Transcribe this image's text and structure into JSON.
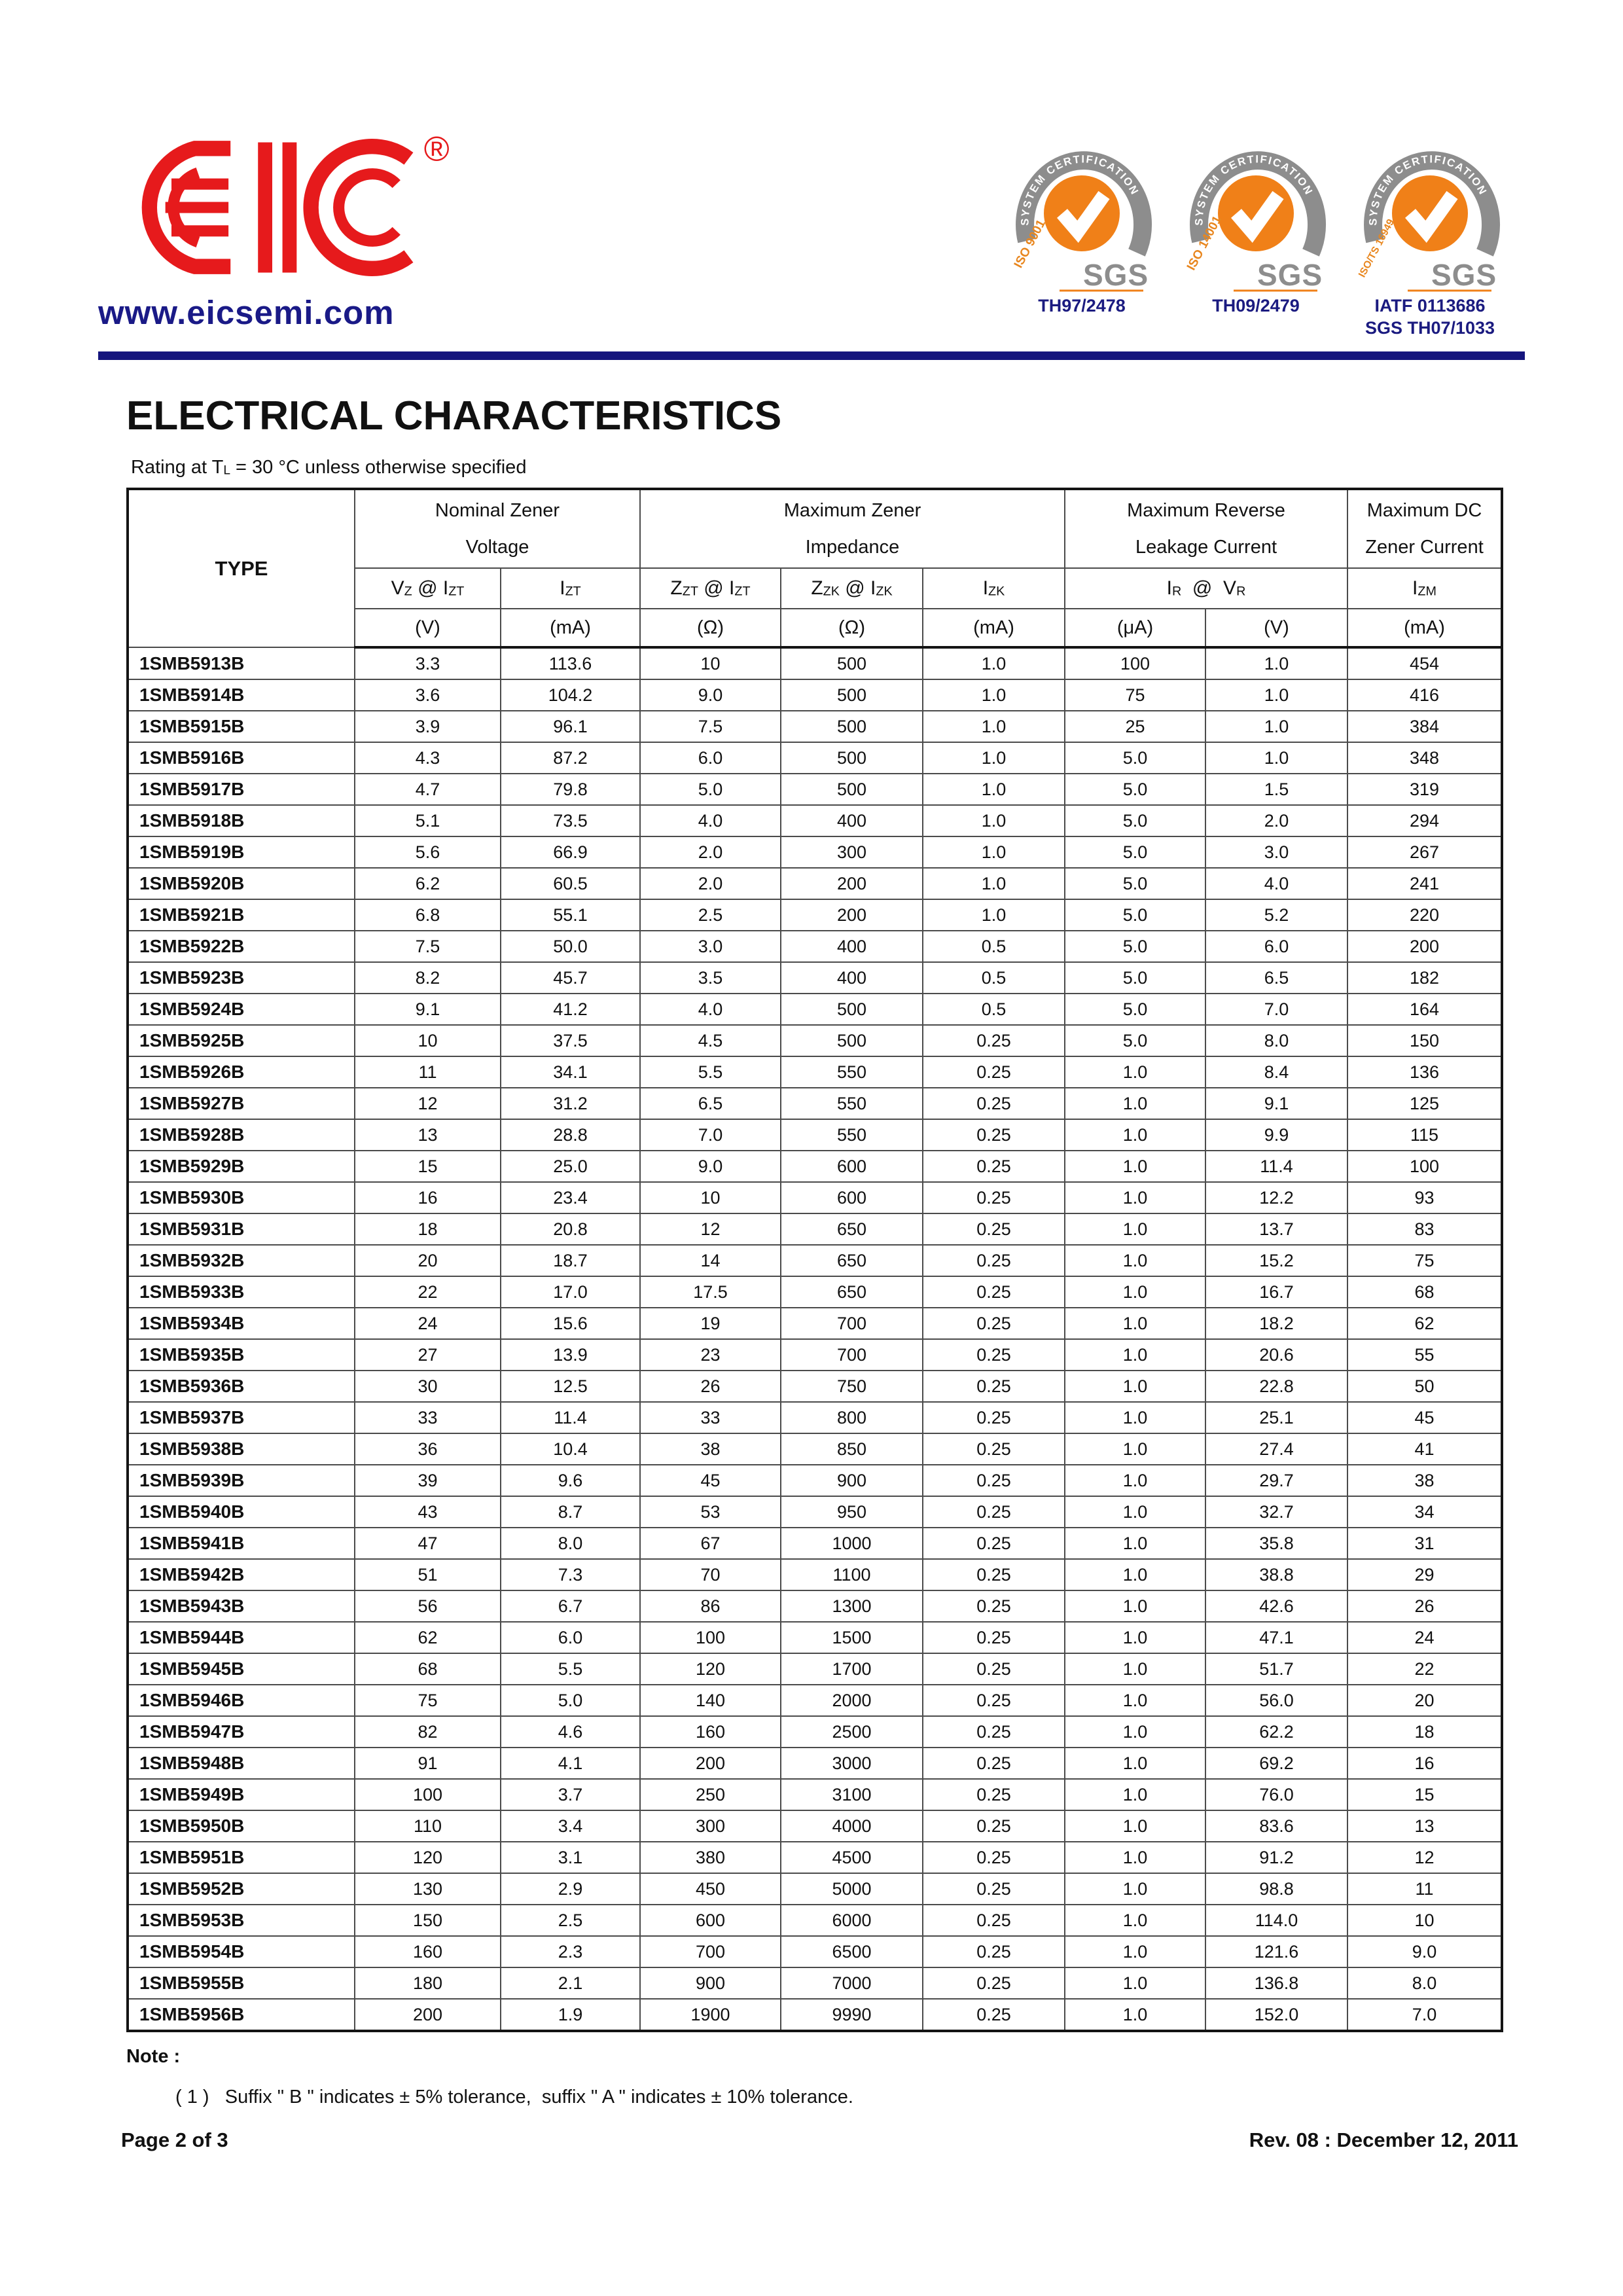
{
  "header": {
    "website": "www.eicsemi.com",
    "logo_reg": "®",
    "badges": [
      {
        "arc_text": "SYSTEM CERTIFICATION",
        "iso": "ISO 9001",
        "sgs": "SGS",
        "label_lines": [
          "TH97/2478"
        ]
      },
      {
        "arc_text": "SYSTEM CERTIFICATION",
        "iso": "ISO 14001",
        "sgs": "SGS",
        "label_lines": [
          "TH09/2479"
        ]
      },
      {
        "arc_text": "SYSTEM CERTIFICATION",
        "iso": "ISO/TS 16949",
        "sgs": "SGS",
        "label_lines": [
          "IATF 0113686",
          "SGS TH07/1033"
        ]
      }
    ]
  },
  "title": "ELECTRICAL CHARACTERISTICS",
  "subtitle_rich": "Rating at T~L~ = 30 °C unless otherwise specified",
  "table": {
    "type_header": "TYPE",
    "groups": [
      {
        "line1": "Nominal Zener",
        "line2": "Voltage"
      },
      {
        "line1": "Maximum Zener",
        "line2": "Impedance"
      },
      {
        "line1": "Maximum Reverse",
        "line2": "Leakage Current"
      },
      {
        "line1": "Maximum DC",
        "line2": "Zener Current"
      }
    ],
    "symbols": [
      {
        "rich": "V~Z~ @ I~ZT~"
      },
      {
        "rich": "I~ZT~"
      },
      {
        "rich": "Z~ZT~ @ I~ZT~"
      },
      {
        "rich": "Z~ZK~ @ I~ZK~"
      },
      {
        "rich": "I~ZK~"
      },
      {
        "rich": "I~R~  @  V~R~"
      },
      {
        "rich": "I~ZM~"
      }
    ],
    "units": [
      "(V)",
      "(mA)",
      "(Ω)",
      "(Ω)",
      "(mA)",
      "(μA)",
      "(V)",
      "(mA)"
    ],
    "rows": [
      [
        "1SMB5913B",
        "3.3",
        "113.6",
        "10",
        "500",
        "1.0",
        "100",
        "1.0",
        "454"
      ],
      [
        "1SMB5914B",
        "3.6",
        "104.2",
        "9.0",
        "500",
        "1.0",
        "75",
        "1.0",
        "416"
      ],
      [
        "1SMB5915B",
        "3.9",
        "96.1",
        "7.5",
        "500",
        "1.0",
        "25",
        "1.0",
        "384"
      ],
      [
        "1SMB5916B",
        "4.3",
        "87.2",
        "6.0",
        "500",
        "1.0",
        "5.0",
        "1.0",
        "348"
      ],
      [
        "1SMB5917B",
        "4.7",
        "79.8",
        "5.0",
        "500",
        "1.0",
        "5.0",
        "1.5",
        "319"
      ],
      [
        "1SMB5918B",
        "5.1",
        "73.5",
        "4.0",
        "400",
        "1.0",
        "5.0",
        "2.0",
        "294"
      ],
      [
        "1SMB5919B",
        "5.6",
        "66.9",
        "2.0",
        "300",
        "1.0",
        "5.0",
        "3.0",
        "267"
      ],
      [
        "1SMB5920B",
        "6.2",
        "60.5",
        "2.0",
        "200",
        "1.0",
        "5.0",
        "4.0",
        "241"
      ],
      [
        "1SMB5921B",
        "6.8",
        "55.1",
        "2.5",
        "200",
        "1.0",
        "5.0",
        "5.2",
        "220"
      ],
      [
        "1SMB5922B",
        "7.5",
        "50.0",
        "3.0",
        "400",
        "0.5",
        "5.0",
        "6.0",
        "200"
      ],
      [
        "1SMB5923B",
        "8.2",
        "45.7",
        "3.5",
        "400",
        "0.5",
        "5.0",
        "6.5",
        "182"
      ],
      [
        "1SMB5924B",
        "9.1",
        "41.2",
        "4.0",
        "500",
        "0.5",
        "5.0",
        "7.0",
        "164"
      ],
      [
        "1SMB5925B",
        "10",
        "37.5",
        "4.5",
        "500",
        "0.25",
        "5.0",
        "8.0",
        "150"
      ],
      [
        "1SMB5926B",
        "11",
        "34.1",
        "5.5",
        "550",
        "0.25",
        "1.0",
        "8.4",
        "136"
      ],
      [
        "1SMB5927B",
        "12",
        "31.2",
        "6.5",
        "550",
        "0.25",
        "1.0",
        "9.1",
        "125"
      ],
      [
        "1SMB5928B",
        "13",
        "28.8",
        "7.0",
        "550",
        "0.25",
        "1.0",
        "9.9",
        "115"
      ],
      [
        "1SMB5929B",
        "15",
        "25.0",
        "9.0",
        "600",
        "0.25",
        "1.0",
        "11.4",
        "100"
      ],
      [
        "1SMB5930B",
        "16",
        "23.4",
        "10",
        "600",
        "0.25",
        "1.0",
        "12.2",
        "93"
      ],
      [
        "1SMB5931B",
        "18",
        "20.8",
        "12",
        "650",
        "0.25",
        "1.0",
        "13.7",
        "83"
      ],
      [
        "1SMB5932B",
        "20",
        "18.7",
        "14",
        "650",
        "0.25",
        "1.0",
        "15.2",
        "75"
      ],
      [
        "1SMB5933B",
        "22",
        "17.0",
        "17.5",
        "650",
        "0.25",
        "1.0",
        "16.7",
        "68"
      ],
      [
        "1SMB5934B",
        "24",
        "15.6",
        "19",
        "700",
        "0.25",
        "1.0",
        "18.2",
        "62"
      ],
      [
        "1SMB5935B",
        "27",
        "13.9",
        "23",
        "700",
        "0.25",
        "1.0",
        "20.6",
        "55"
      ],
      [
        "1SMB5936B",
        "30",
        "12.5",
        "26",
        "750",
        "0.25",
        "1.0",
        "22.8",
        "50"
      ],
      [
        "1SMB5937B",
        "33",
        "11.4",
        "33",
        "800",
        "0.25",
        "1.0",
        "25.1",
        "45"
      ],
      [
        "1SMB5938B",
        "36",
        "10.4",
        "38",
        "850",
        "0.25",
        "1.0",
        "27.4",
        "41"
      ],
      [
        "1SMB5939B",
        "39",
        "9.6",
        "45",
        "900",
        "0.25",
        "1.0",
        "29.7",
        "38"
      ],
      [
        "1SMB5940B",
        "43",
        "8.7",
        "53",
        "950",
        "0.25",
        "1.0",
        "32.7",
        "34"
      ],
      [
        "1SMB5941B",
        "47",
        "8.0",
        "67",
        "1000",
        "0.25",
        "1.0",
        "35.8",
        "31"
      ],
      [
        "1SMB5942B",
        "51",
        "7.3",
        "70",
        "1100",
        "0.25",
        "1.0",
        "38.8",
        "29"
      ],
      [
        "1SMB5943B",
        "56",
        "6.7",
        "86",
        "1300",
        "0.25",
        "1.0",
        "42.6",
        "26"
      ],
      [
        "1SMB5944B",
        "62",
        "6.0",
        "100",
        "1500",
        "0.25",
        "1.0",
        "47.1",
        "24"
      ],
      [
        "1SMB5945B",
        "68",
        "5.5",
        "120",
        "1700",
        "0.25",
        "1.0",
        "51.7",
        "22"
      ],
      [
        "1SMB5946B",
        "75",
        "5.0",
        "140",
        "2000",
        "0.25",
        "1.0",
        "56.0",
        "20"
      ],
      [
        "1SMB5947B",
        "82",
        "4.6",
        "160",
        "2500",
        "0.25",
        "1.0",
        "62.2",
        "18"
      ],
      [
        "1SMB5948B",
        "91",
        "4.1",
        "200",
        "3000",
        "0.25",
        "1.0",
        "69.2",
        "16"
      ],
      [
        "1SMB5949B",
        "100",
        "3.7",
        "250",
        "3100",
        "0.25",
        "1.0",
        "76.0",
        "15"
      ],
      [
        "1SMB5950B",
        "110",
        "3.4",
        "300",
        "4000",
        "0.25",
        "1.0",
        "83.6",
        "13"
      ],
      [
        "1SMB5951B",
        "120",
        "3.1",
        "380",
        "4500",
        "0.25",
        "1.0",
        "91.2",
        "12"
      ],
      [
        "1SMB5952B",
        "130",
        "2.9",
        "450",
        "5000",
        "0.25",
        "1.0",
        "98.8",
        "11"
      ],
      [
        "1SMB5953B",
        "150",
        "2.5",
        "600",
        "6000",
        "0.25",
        "1.0",
        "114.0",
        "10"
      ],
      [
        "1SMB5954B",
        "160",
        "2.3",
        "700",
        "6500",
        "0.25",
        "1.0",
        "121.6",
        "9.0"
      ],
      [
        "1SMB5955B",
        "180",
        "2.1",
        "900",
        "7000",
        "0.25",
        "1.0",
        "136.8",
        "8.0"
      ],
      [
        "1SMB5956B",
        "200",
        "1.9",
        "1900",
        "9990",
        "0.25",
        "1.0",
        "152.0",
        "7.0"
      ]
    ]
  },
  "note": {
    "heading": "Note :",
    "item_rich": "( 1 )   Suffix \" B \" indicates ± 5% tolerance,  suffix \" A \" indicates ± 10% tolerance."
  },
  "footer": {
    "page": "Page 2 of 3",
    "rev": "Rev. 08 : December 12, 2011"
  }
}
